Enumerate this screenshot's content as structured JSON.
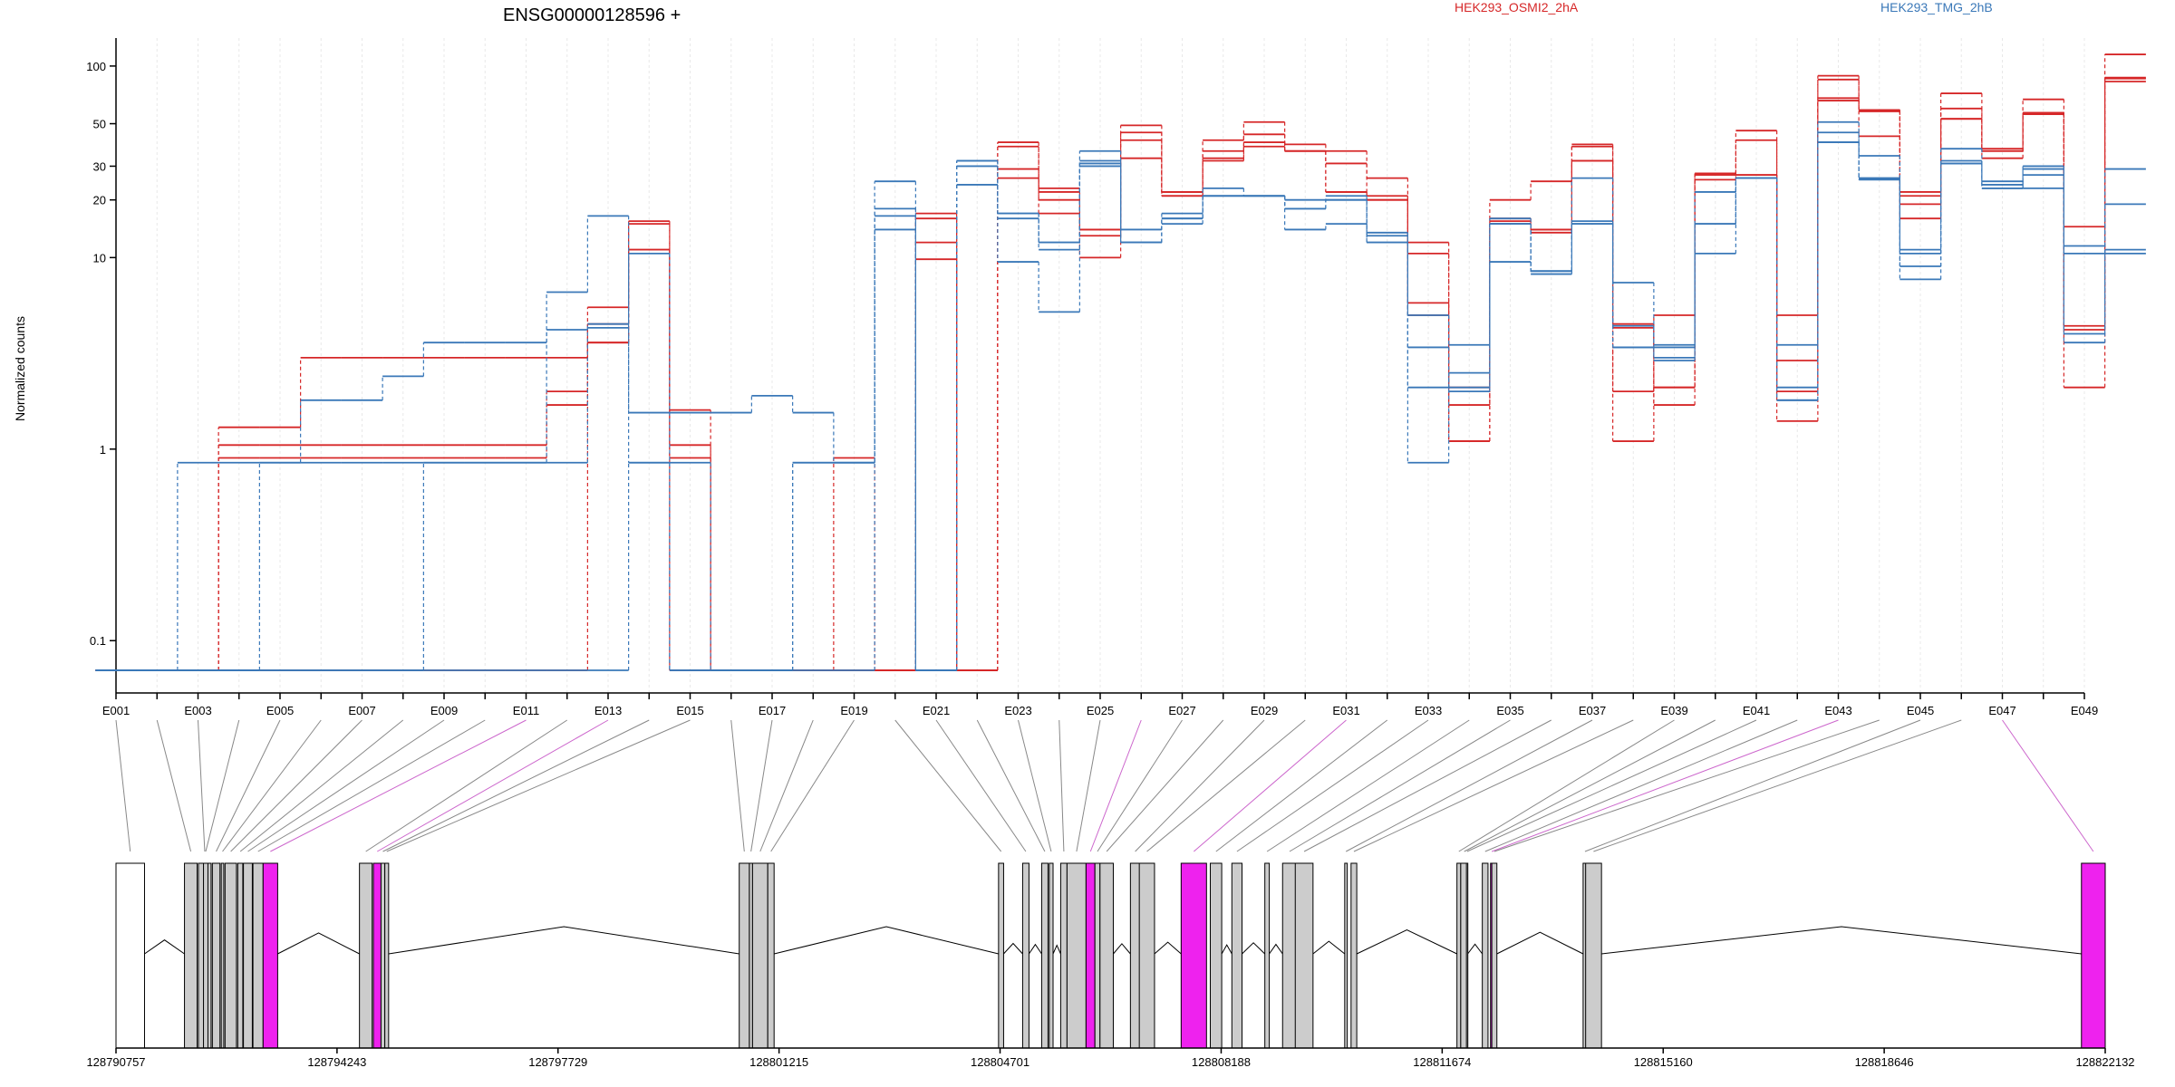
{
  "chart_data": {
    "type": "line",
    "title": "ENSG00000128596 +",
    "ylabel": "Normalized counts",
    "yscale": "log",
    "ylim": [
      0.07,
      140
    ],
    "yticks": [
      0.1,
      1,
      10,
      20,
      30,
      50,
      100
    ],
    "ytick_labels": [
      "0.1",
      "1",
      "10",
      "20",
      "30",
      "50",
      "100"
    ],
    "legend_placement": "top",
    "series_colors": {
      "HEK293_OSMI2_2hA": "#d62728",
      "HEK293_TMG_2hB": "#3a78b8"
    },
    "exon_labels_shown": [
      "E001",
      "E003",
      "E005",
      "E007",
      "E009",
      "E011",
      "E013",
      "E015",
      "E017",
      "E019",
      "E021",
      "E023",
      "E025",
      "E027",
      "E029",
      "E031",
      "E033",
      "E035",
      "E037",
      "E039",
      "E041",
      "E043",
      "E045",
      "E047",
      "E049"
    ],
    "genomic_coordinates": [
      "128790757",
      "128794243",
      "128797729",
      "128801215",
      "128804701",
      "128808188",
      "128811674",
      "128815160",
      "128818646",
      "128822132"
    ],
    "exon_fill_default": "#cccccc",
    "exon_fill_highlight": "#ee22ee",
    "series": [
      {
        "name": "HEK293_OSMI2_2hA",
        "values": [
          0.07,
          0.07,
          0.07,
          1.3,
          1.3,
          3,
          3,
          3,
          3,
          3,
          3,
          3,
          4.5,
          15,
          1.6,
          0.07,
          0.07,
          0.07,
          0.07,
          0.07,
          17,
          0.07,
          38,
          23,
          14,
          49,
          21,
          41,
          51,
          39,
          36,
          26,
          5,
          1.1,
          20,
          25,
          38,
          1.1,
          5,
          27,
          46,
          5,
          68,
          43,
          22,
          72,
          37,
          67,
          14.5,
          115
        ]
      },
      {
        "name": "HEK293_OSMI2_2hA",
        "values": [
          0.07,
          0.07,
          0.07,
          1.05,
          1.05,
          1.05,
          1.05,
          1.05,
          1.05,
          1.05,
          1.05,
          2,
          5.5,
          15.5,
          1.05,
          0.07,
          0.07,
          0.07,
          0.07,
          0.07,
          12,
          0.07,
          29,
          20,
          10,
          45,
          22,
          32,
          40,
          36,
          31,
          21,
          10.5,
          2.1,
          16,
          14,
          32,
          2,
          2.1,
          25.5,
          41,
          2.9,
          85,
          58,
          16,
          60,
          33,
          57,
          2.1,
          83
        ]
      },
      {
        "name": "HEK293_OSMI2_2hA",
        "values": [
          0.07,
          0.07,
          0.07,
          0.9,
          0.9,
          0.9,
          0.9,
          0.9,
          0.9,
          0.9,
          0.9,
          1.7,
          3.6,
          11,
          0.9,
          0.07,
          0.07,
          0.07,
          0.07,
          0.07,
          9.8,
          0.07,
          26,
          17,
          13,
          33,
          21,
          36,
          38,
          36,
          22,
          20,
          12,
          1.7,
          15.5,
          13.5,
          39,
          4.5,
          1.7,
          27.5,
          27,
          2,
          66,
          59,
          19,
          53,
          36,
          57,
          4.4,
          87
        ]
      },
      {
        "name": "HEK293_OSMI2_2hA",
        "values": [
          0.07,
          0.07,
          0.07,
          0.07,
          0.07,
          0.07,
          0.07,
          0.07,
          0.07,
          0.07,
          0.07,
          0.07,
          3.6,
          11,
          0.07,
          0.07,
          0.07,
          0.07,
          0.9,
          0.07,
          16,
          0.07,
          40,
          22,
          14,
          41,
          22,
          33,
          44,
          36,
          22,
          20,
          5.8,
          1.1,
          15,
          14,
          32,
          4.3,
          2.1,
          27,
          27,
          1.4,
          89,
          59,
          21,
          53,
          36,
          56,
          4.2,
          86
        ]
      },
      {
        "name": "HEK293_TMG_2hB",
        "values": [
          0.07,
          0.07,
          0.85,
          0.85,
          0.85,
          1.8,
          1.8,
          2.4,
          3.6,
          3.6,
          3.6,
          6.6,
          16.5,
          1.55,
          1.55,
          1.55,
          1.9,
          1.55,
          0.85,
          25,
          0.07,
          24,
          9.5,
          5.2,
          32,
          14,
          15,
          21,
          21,
          14,
          15,
          13.5,
          5,
          3.5,
          9.5,
          8.5,
          15.5,
          7.4,
          3.5,
          10.5,
          26,
          2.1,
          51,
          25.5,
          7.7,
          32,
          25,
          23,
          10.5,
          19
        ]
      },
      {
        "name": "HEK293_TMG_2hB",
        "values": [
          0.07,
          0.07,
          0.07,
          0.07,
          0.85,
          0.85,
          0.85,
          0.85,
          0.85,
          0.85,
          0.85,
          0.85,
          4.5,
          10.5,
          0.85,
          0.07,
          0.07,
          0.85,
          0.85,
          18,
          0.07,
          30,
          16,
          11,
          31,
          12,
          17,
          21,
          21,
          18,
          21,
          12,
          3.4,
          2,
          15,
          8.2,
          26,
          4.4,
          3,
          22,
          26,
          3.5,
          45,
          34,
          9,
          37,
          24,
          29,
          11.5,
          29
        ]
      },
      {
        "name": "HEK293_TMG_2hB",
        "values": [
          0.07,
          0.07,
          0.07,
          0.07,
          0.07,
          0.07,
          0.07,
          0.07,
          0.85,
          0.85,
          0.85,
          4.2,
          4.3,
          0.85,
          0.07,
          0.07,
          0.07,
          0.85,
          0.85,
          16.5,
          0.07,
          32,
          17,
          12,
          36,
          12,
          16,
          23,
          21,
          18,
          20,
          13,
          0.85,
          2.1,
          15,
          8.5,
          15,
          3.4,
          2.9,
          15,
          26,
          1.8,
          40,
          26,
          11,
          31,
          23,
          30,
          3.6,
          11
        ]
      },
      {
        "name": "HEK293_TMG_2hB",
        "values": [
          0.07,
          0.07,
          0.07,
          0.07,
          0.07,
          0.07,
          0.07,
          0.07,
          0.07,
          0.07,
          0.07,
          0.07,
          0.07,
          0.85,
          0.07,
          0.07,
          0.07,
          0.07,
          0.07,
          14,
          0.07,
          32,
          17,
          12,
          30,
          12,
          16,
          21,
          21,
          20,
          20,
          12,
          2.1,
          2.5,
          16,
          8.5,
          15,
          3.4,
          3.4,
          15,
          26,
          1.8,
          40,
          26,
          10.5,
          31,
          23,
          27,
          4,
          10.5
        ]
      }
    ]
  },
  "legend": {
    "a": "HEK293_OSMI2_2hA",
    "b": "HEK293_TMG_2hB"
  }
}
